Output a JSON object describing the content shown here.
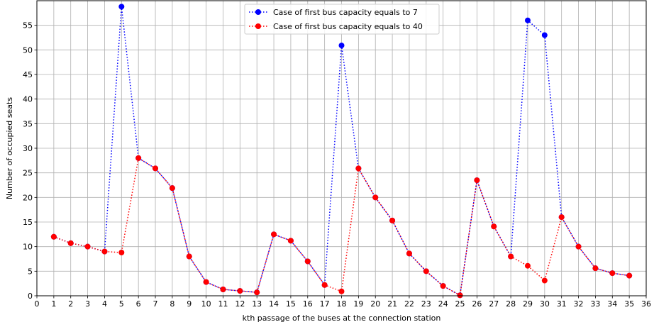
{
  "chart_data": {
    "type": "line",
    "title": "",
    "xlabel": "kth passage of the buses at the connection station",
    "ylabel": "Number of occupied seats",
    "xlim": [
      0,
      36
    ],
    "ylim": [
      0,
      60
    ],
    "x_ticks": [
      0,
      1,
      2,
      3,
      4,
      5,
      6,
      7,
      8,
      9,
      10,
      11,
      12,
      13,
      14,
      15,
      16,
      17,
      18,
      19,
      20,
      21,
      22,
      23,
      24,
      25,
      26,
      27,
      28,
      29,
      30,
      31,
      32,
      33,
      34,
      35,
      36
    ],
    "y_ticks": [
      0,
      5,
      10,
      15,
      20,
      25,
      30,
      35,
      40,
      45,
      50,
      55
    ],
    "grid": true,
    "legend_position": "top-center",
    "x": [
      1,
      2,
      3,
      4,
      5,
      6,
      7,
      8,
      9,
      10,
      11,
      12,
      13,
      14,
      15,
      16,
      17,
      18,
      19,
      20,
      21,
      22,
      23,
      24,
      25,
      26,
      27,
      28,
      29,
      30,
      31,
      32,
      33,
      34,
      35
    ],
    "series": [
      {
        "name": "Case of first bus capacity equals to 7",
        "color": "#0000ff",
        "line_style": "dotted",
        "marker": "circle",
        "values": [
          12,
          10.7,
          10,
          9,
          58.8,
          28,
          25.9,
          21.9,
          8,
          2.8,
          1.3,
          1,
          0.7,
          12.5,
          11.2,
          7,
          2.2,
          50.9,
          25.9,
          20,
          15.3,
          8.6,
          5,
          2,
          0.1,
          23.5,
          14.1,
          8,
          56,
          53,
          16,
          10,
          5.6,
          4.6,
          4.1
        ]
      },
      {
        "name": "Case of first bus capacity equals to 40",
        "color": "#ff0000",
        "line_style": "dotted",
        "marker": "circle",
        "values": [
          12,
          10.7,
          10,
          9,
          8.8,
          28,
          25.9,
          21.9,
          8,
          2.8,
          1.3,
          1,
          0.7,
          12.5,
          11.2,
          7,
          2.2,
          0.9,
          25.9,
          20,
          15.3,
          8.6,
          5,
          2,
          0.1,
          23.5,
          14.1,
          8,
          6.1,
          3.1,
          16,
          10,
          5.6,
          4.6,
          4.1
        ]
      }
    ]
  }
}
